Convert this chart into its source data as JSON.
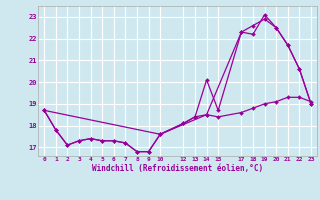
{
  "background_color": "#cfe8f0",
  "grid_color": "#ffffff",
  "line_color": "#990099",
  "xlabel": "Windchill (Refroidissement éolien,°C)",
  "xlim": [
    -0.5,
    23.5
  ],
  "ylim": [
    16.6,
    23.5
  ],
  "yticks": [
    17,
    18,
    19,
    20,
    21,
    22,
    23
  ],
  "xtick_labels": [
    "0",
    "1",
    "2",
    "3",
    "4",
    "5",
    "6",
    "7",
    "8",
    "9",
    "10",
    "12",
    "13",
    "14",
    "15",
    "17",
    "18",
    "19",
    "20",
    "21",
    "22",
    "23"
  ],
  "xtick_positions": [
    0,
    1,
    2,
    3,
    4,
    5,
    6,
    7,
    8,
    9,
    10,
    12,
    13,
    14,
    15,
    17,
    18,
    19,
    20,
    21,
    22,
    23
  ],
  "line1_x": [
    0,
    1,
    2,
    3,
    4,
    5,
    6,
    7,
    8,
    9,
    10,
    12,
    13,
    14,
    15,
    17,
    18,
    19,
    20,
    21,
    22,
    23
  ],
  "line1_y": [
    18.7,
    17.8,
    17.1,
    17.3,
    17.4,
    17.3,
    17.3,
    17.2,
    16.8,
    16.8,
    17.6,
    18.1,
    18.4,
    20.1,
    18.7,
    22.3,
    22.2,
    23.1,
    22.5,
    21.7,
    20.6,
    19.0
  ],
  "line2_x": [
    0,
    1,
    2,
    3,
    4,
    5,
    6,
    7,
    8,
    9,
    10,
    12,
    13,
    14,
    15,
    17,
    18,
    19,
    20,
    21,
    22,
    23
  ],
  "line2_y": [
    18.7,
    17.8,
    17.1,
    17.3,
    17.4,
    17.3,
    17.3,
    17.2,
    16.8,
    16.8,
    17.6,
    18.1,
    18.4,
    18.5,
    18.4,
    18.6,
    18.8,
    19.0,
    19.1,
    19.3,
    19.3,
    19.1
  ],
  "line3_x": [
    0,
    10,
    14,
    17,
    18,
    19,
    20,
    21,
    22,
    23
  ],
  "line3_y": [
    18.7,
    17.6,
    18.5,
    22.3,
    22.6,
    22.9,
    22.5,
    21.7,
    20.6,
    19.0
  ]
}
